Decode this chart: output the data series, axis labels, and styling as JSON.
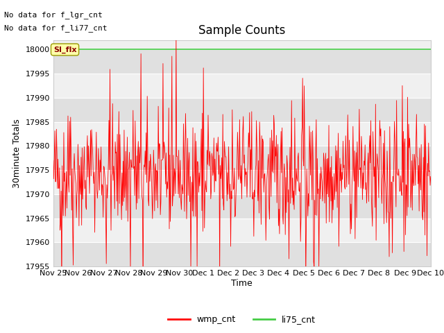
{
  "title": "Sample Counts",
  "ylabel": "30minute Totals",
  "xlabel": "Time",
  "text_lines": [
    "No data for f_lgr_cnt",
    "No data for f_li77_cnt"
  ],
  "annotation_label": "SI_flx",
  "ylim": [
    17955,
    18002
  ],
  "flat_line_value": 18000,
  "red_line_color": "#ff0000",
  "green_line_color": "#44cc44",
  "background_color": "#ffffff",
  "plot_bg_color": "#f0f0f0",
  "stripe_color_dark": "#e0e0e0",
  "stripe_color_light": "#f0f0f0",
  "title_fontsize": 12,
  "axis_label_fontsize": 9,
  "tick_label_fontsize": 8,
  "legend_entries": [
    "wmp_cnt",
    "li75_cnt"
  ],
  "legend_colors": [
    "#ff0000",
    "#44cc44"
  ],
  "x_tick_labels": [
    "Nov 25",
    "Nov 26",
    "Nov 27",
    "Nov 28",
    "Nov 29",
    "Nov 30",
    "Dec 1 ",
    "Dec 2 ",
    "Dec 3 ",
    "Dec 4 ",
    "Dec 5 ",
    "Dec 6 ",
    "Dec 7 ",
    "Dec 8 ",
    "Dec 9",
    "Dec 10"
  ],
  "y_ticks": [
    17955,
    17960,
    17965,
    17970,
    17975,
    17980,
    17985,
    17990,
    17995,
    18000
  ],
  "num_points": 720,
  "base_value": 17974,
  "seed": 42
}
